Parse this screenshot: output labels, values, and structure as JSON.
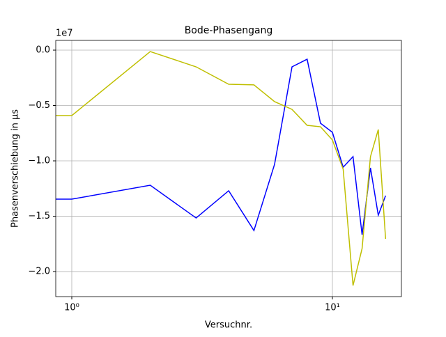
{
  "chart_data": {
    "type": "line",
    "title": "Bode-Phasengang",
    "x_label": "Versuchnr.",
    "y_label": "Phasenverschiebung in µs",
    "y_offset_text": "1e7",
    "x": [
      0,
      1,
      2,
      3,
      4,
      5,
      6,
      7,
      8,
      9,
      10,
      11,
      12,
      13,
      14,
      15,
      16
    ],
    "series": [
      {
        "color": "#0000ff",
        "values": [
          -13460000,
          -13460000,
          -12200000,
          -15160000,
          -12700000,
          -16290000,
          -10310000,
          -1510000,
          -820000,
          -6600000,
          -7420000,
          -10570000,
          -9620000,
          -16670000,
          -10630000,
          -14910000,
          -13140000
        ]
      },
      {
        "color": "#bfbf00",
        "values": [
          -5910000,
          -5910000,
          -130000,
          -1510000,
          -3080000,
          -3140000,
          -4650000,
          -5350000,
          -6790000,
          -6920000,
          -8110000,
          -10750000,
          -21260000,
          -17920000,
          -9620000,
          -7170000,
          -17040000
        ]
      }
    ],
    "x_scale": "log",
    "xlim": [
      0.868,
      18.4
    ],
    "ylim": [
      -22260000,
      880000
    ],
    "xticks": [
      {
        "value": 1,
        "label": "10⁰"
      },
      {
        "value": 10,
        "label": "10¹"
      }
    ],
    "yticks": [
      {
        "value": -20000000,
        "label": "−2.0"
      },
      {
        "value": -15000000,
        "label": "−1.5"
      },
      {
        "value": -10000000,
        "label": "−1.0"
      },
      {
        "value": -5000000,
        "label": "−0.5"
      },
      {
        "value": 0,
        "label": "0.0"
      }
    ],
    "grid": true
  }
}
